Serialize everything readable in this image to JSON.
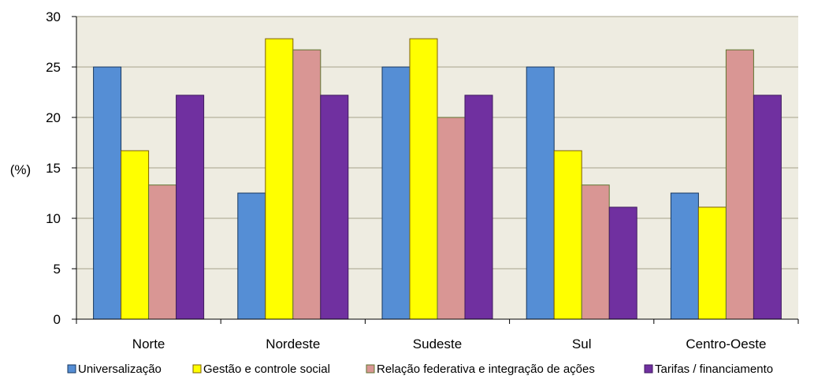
{
  "chart_data": {
    "type": "bar",
    "title": "",
    "xlabel": "",
    "ylabel": "(%)",
    "ylim": [
      0,
      30
    ],
    "yticks": [
      0,
      5,
      10,
      15,
      20,
      25,
      30
    ],
    "grid": true,
    "legend_position": "bottom",
    "plot_background": "#EEECE1",
    "gridline_color": "#A6A28A",
    "categories": [
      "Norte",
      "Nordeste",
      "Sudeste",
      "Sul",
      "Centro-Oeste"
    ],
    "series": [
      {
        "name": "Universalização",
        "color": "#558ED5",
        "border": "#17375E",
        "values": [
          25.0,
          12.5,
          25.0,
          25.0,
          12.5
        ]
      },
      {
        "name": "Gestão e controle social",
        "color": "#FFFF00",
        "border": "#7F6000",
        "values": [
          16.7,
          27.8,
          27.8,
          16.7,
          11.1
        ]
      },
      {
        "name": "Relação federativa e integração de ações",
        "color": "#D99694",
        "border": "#5F7530",
        "values": [
          13.3,
          26.7,
          20.0,
          13.3,
          26.7
        ]
      },
      {
        "name": "Tarifas / financiamento",
        "color": "#7030A0",
        "border": "#3F1A5E",
        "values": [
          22.2,
          22.2,
          22.2,
          11.1,
          22.2
        ]
      }
    ]
  }
}
